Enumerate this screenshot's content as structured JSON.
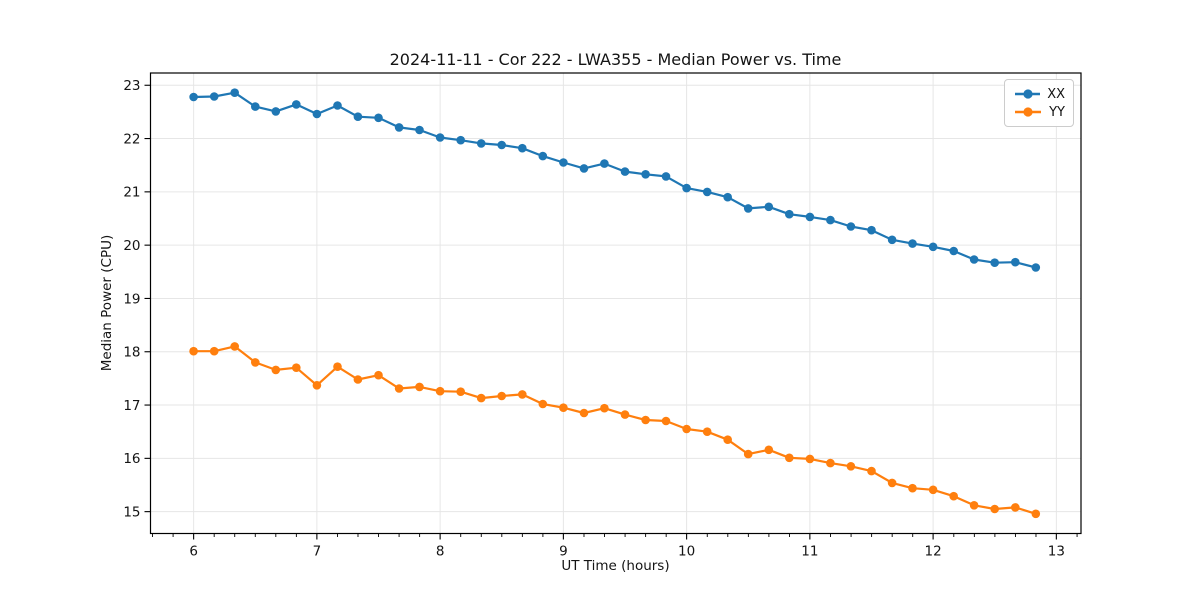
{
  "figure": {
    "background": "#ffffff",
    "title": "2024-11-11 - Cor 222 - LWA355 - Median Power vs. Time",
    "xlabel": "UT Time (hours)",
    "ylabel": "Median Power (CPU)"
  },
  "legend": {
    "position": "upper right",
    "items": [
      {
        "label": "XX",
        "color": "#1f77b4"
      },
      {
        "label": "YY",
        "color": "#ff7f0e"
      }
    ]
  },
  "chart_data": {
    "type": "line",
    "title": "2024-11-11 - Cor 222 - LWA355 - Median Power vs. Time",
    "xlabel": "UT Time (hours)",
    "ylabel": "Median Power (CPU)",
    "xlim": [
      5.65,
      13.2
    ],
    "ylim": [
      14.59,
      23.23
    ],
    "xticks": [
      6,
      7,
      8,
      9,
      10,
      11,
      12,
      13
    ],
    "yticks": [
      15,
      16,
      17,
      18,
      19,
      20,
      21,
      22,
      23
    ],
    "x_minor_step": 0.1667,
    "grid": true,
    "grid_color": "#e6e6e6",
    "spine_color": "#000000",
    "marker": "o",
    "legend_position": "upper right",
    "x": [
      6,
      6.167,
      6.333,
      6.5,
      6.667,
      6.833,
      7,
      7.167,
      7.333,
      7.5,
      7.667,
      7.833,
      8,
      8.167,
      8.333,
      8.5,
      8.667,
      8.833,
      9,
      9.167,
      9.333,
      9.5,
      9.667,
      9.833,
      10,
      10.167,
      10.333,
      10.5,
      10.667,
      10.833,
      11,
      11.167,
      11.333,
      11.5,
      11.667,
      11.833,
      12,
      12.167,
      12.333,
      12.5,
      12.667,
      12.833
    ],
    "series": [
      {
        "name": "XX",
        "color": "#1f77b4",
        "values": [
          22.78,
          22.79,
          22.86,
          22.6,
          22.51,
          22.64,
          22.46,
          22.62,
          22.41,
          22.39,
          22.21,
          22.16,
          22.02,
          21.97,
          21.91,
          21.88,
          21.82,
          21.67,
          21.55,
          21.44,
          21.53,
          21.38,
          21.33,
          21.29,
          21.07,
          21.0,
          20.9,
          20.69,
          20.72,
          20.58,
          20.53,
          20.47,
          20.35,
          20.28,
          20.1,
          20.03,
          19.97,
          19.89,
          19.73,
          19.67,
          19.68,
          19.58
        ]
      },
      {
        "name": "YY",
        "color": "#ff7f0e",
        "values": [
          18.01,
          18.01,
          18.1,
          17.8,
          17.66,
          17.7,
          17.37,
          17.72,
          17.48,
          17.56,
          17.31,
          17.34,
          17.26,
          17.25,
          17.13,
          17.17,
          17.2,
          17.02,
          16.95,
          16.85,
          16.94,
          16.82,
          16.72,
          16.7,
          16.55,
          16.5,
          16.35,
          16.08,
          16.16,
          16.01,
          15.99,
          15.91,
          15.85,
          15.76,
          15.54,
          15.44,
          15.41,
          15.29,
          15.12,
          15.05,
          15.08,
          14.96
        ]
      }
    ]
  }
}
